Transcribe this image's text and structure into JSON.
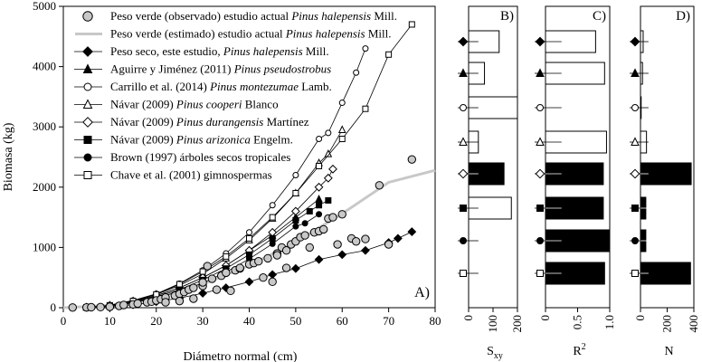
{
  "chart_data": [
    {
      "panel": "A)",
      "type": "scatter",
      "xlabel": "Diámetro normal (cm)",
      "ylabel": "Biomasa (kg)",
      "xlim": [
        0,
        80
      ],
      "ylim": [
        0,
        5000
      ],
      "xticks": [
        0,
        10,
        20,
        30,
        40,
        50,
        60,
        70,
        80
      ],
      "yticks": [
        0,
        1000,
        2000,
        3000,
        4000,
        5000
      ],
      "legend_position": "top-left",
      "series": [
        {
          "key": "obs",
          "label_pre": "Peso verde (observado) estudio actual ",
          "label_species": "Pinus halepensis",
          "label_post": " Mill.",
          "style": "circle-gray",
          "x": [
            2,
            5,
            6,
            8,
            10,
            12,
            13,
            15,
            16,
            18,
            19,
            20,
            21,
            22,
            22,
            24,
            25,
            25,
            26,
            27,
            28,
            28,
            30,
            30,
            31,
            32,
            33,
            34,
            35,
            36,
            37,
            38,
            38,
            40,
            41,
            42,
            43,
            44,
            45,
            46,
            46,
            47,
            48,
            48,
            49,
            50,
            51,
            52,
            53,
            54,
            55,
            56,
            57,
            58,
            59,
            60,
            62,
            63,
            65,
            68,
            70,
            75
          ],
          "values": [
            3,
            5,
            8,
            10,
            15,
            30,
            45,
            55,
            70,
            90,
            100,
            120,
            140,
            170,
            90,
            200,
            230,
            110,
            260,
            300,
            330,
            150,
            360,
            420,
            690,
            480,
            300,
            530,
            580,
            280,
            620,
            650,
            660,
            720,
            740,
            770,
            500,
            820,
            430,
            900,
            870,
            1000,
            950,
            660,
            1050,
            1100,
            1170,
            1200,
            1000,
            1250,
            1270,
            1300,
            1480,
            1500,
            1050,
            1550,
            1150,
            1100,
            1140,
            2030,
            1050,
            2460
          ]
        },
        {
          "key": "est",
          "label_pre": "Peso verde (estimado) estudio actual ",
          "label_species": "Pinus halepensis",
          "label_post": " Mill.",
          "style": "line-gray",
          "x": [
            0,
            10,
            20,
            30,
            40,
            50,
            60,
            70,
            80
          ],
          "values": [
            0,
            40,
            170,
            390,
            700,
            1090,
            1560,
            2080,
            2280
          ]
        },
        {
          "key": "seco",
          "label_pre": "Peso seco, este estudio, ",
          "label_species": "Pinus halepensis",
          "label_post": " Mill.",
          "style": "diamond-filled",
          "x": [
            5,
            10,
            15,
            20,
            25,
            30,
            35,
            40,
            45,
            50,
            55,
            60,
            65,
            70,
            72,
            75
          ],
          "values": [
            5,
            20,
            50,
            100,
            160,
            240,
            330,
            430,
            550,
            650,
            800,
            880,
            950,
            1080,
            1150,
            1260
          ]
        },
        {
          "key": "aguirre",
          "label_pre": "Aguirre y Jiménez (2011) ",
          "label_species": "Pinus pseudostrobus",
          "label_post": "",
          "style": "triangle-filled",
          "x": [
            5,
            10,
            15,
            20,
            25,
            30,
            35,
            40,
            45,
            50,
            55
          ],
          "values": [
            5,
            35,
            100,
            200,
            330,
            500,
            700,
            950,
            1200,
            1500,
            1800
          ]
        },
        {
          "key": "carrillo",
          "label_pre": "Carrillo et al. (2014) ",
          "label_species": "Pinus montezumae",
          "label_post": " Lamb.",
          "style": "circle-open",
          "x": [
            5,
            10,
            15,
            20,
            25,
            30,
            35,
            40,
            45,
            50,
            55,
            57,
            60,
            63,
            65
          ],
          "values": [
            6,
            40,
            120,
            230,
            400,
            620,
            900,
            1250,
            1700,
            2200,
            2800,
            2900,
            3400,
            3900,
            4300
          ]
        },
        {
          "key": "cooperi",
          "label_pre": "Návar (2009) ",
          "label_species": "Pinus cooperi",
          "label_post": " Blanco",
          "style": "triangle-open",
          "x": [
            5,
            10,
            15,
            20,
            25,
            30,
            35,
            40,
            45,
            50,
            55,
            57,
            60
          ],
          "values": [
            5,
            40,
            110,
            220,
            370,
            560,
            820,
            1120,
            1480,
            1900,
            2400,
            2550,
            2950
          ]
        },
        {
          "key": "durang",
          "label_pre": "Návar (2009) ",
          "label_species": "Pinus durangensis",
          "label_post": " Martínez",
          "style": "diamond-open",
          "x": [
            5,
            10,
            15,
            20,
            25,
            30,
            35,
            40,
            45,
            50,
            55,
            57,
            58
          ],
          "values": [
            5,
            35,
            100,
            200,
            330,
            500,
            700,
            950,
            1250,
            1600,
            2000,
            2150,
            2300
          ]
        },
        {
          "key": "arizonica",
          "label_pre": "Návar (2009) ",
          "label_species": "Pinus arizonica",
          "label_post": " Engelm.",
          "style": "square-filled",
          "x": [
            5,
            10,
            15,
            20,
            25,
            30,
            35,
            40,
            45,
            50,
            53,
            55,
            57
          ],
          "values": [
            5,
            30,
            90,
            180,
            300,
            460,
            650,
            880,
            1150,
            1450,
            1600,
            1700,
            1780
          ]
        },
        {
          "key": "brown",
          "label_pre": "Brown (1997) árboles secos tropicales",
          "label_species": "",
          "label_post": "",
          "style": "circle-filled",
          "x": [
            5,
            10,
            15,
            20,
            25,
            30,
            35,
            40,
            45,
            50,
            52,
            55
          ],
          "values": [
            5,
            25,
            80,
            160,
            270,
            410,
            590,
            810,
            1060,
            1350,
            1400,
            1550
          ]
        },
        {
          "key": "chave",
          "label_pre": "Chave et al. (2001) gimnospermas",
          "label_species": "",
          "label_post": "",
          "style": "square-open",
          "x": [
            5,
            10,
            15,
            20,
            25,
            30,
            35,
            40,
            45,
            50,
            55,
            60,
            65,
            70,
            75
          ],
          "values": [
            5,
            40,
            110,
            220,
            390,
            600,
            850,
            1150,
            1500,
            1900,
            2350,
            2800,
            3300,
            4200,
            4700
          ]
        }
      ]
    },
    {
      "panel": "B)",
      "type": "bar",
      "orientation": "horizontal",
      "xlabel": "S",
      "xlabel_sub": "xy",
      "xlim": [
        0,
        200
      ],
      "xticks": [
        0,
        100,
        200
      ],
      "categories": [
        "seco",
        "aguirre",
        "carrillo",
        "cooperi",
        "durang",
        "arizonica",
        "brown",
        "chave"
      ],
      "values": [
        125,
        65,
        200,
        40,
        145,
        175,
        0,
        0
      ],
      "fills": [
        "white",
        "white",
        "white",
        "white",
        "black",
        "white",
        "white",
        "white"
      ],
      "errors": [
        40,
        40,
        40,
        40,
        40,
        40,
        40,
        40
      ]
    },
    {
      "panel": "C)",
      "type": "bar",
      "orientation": "horizontal",
      "xlabel": "R",
      "xlabel_sup": "2",
      "xlim": [
        0,
        1
      ],
      "xticks": [
        0,
        0.5,
        1.0
      ],
      "xtick_labels": [
        "0",
        "0.5",
        "1.0"
      ],
      "categories": [
        "seco",
        "aguirre",
        "carrillo",
        "cooperi",
        "durang",
        "arizonica",
        "brown",
        "chave"
      ],
      "values": [
        0.78,
        0.92,
        0,
        0.95,
        0.9,
        0.9,
        1.0,
        0.92
      ],
      "fills": [
        "white",
        "white",
        "white",
        "white",
        "black",
        "black",
        "black",
        "black"
      ],
      "errors": [
        0.25,
        0.25,
        0.25,
        0.25,
        0.25,
        0.25,
        0.25,
        0.25
      ]
    },
    {
      "panel": "D)",
      "type": "bar",
      "orientation": "horizontal",
      "xlabel": "N",
      "xlim": [
        0,
        400
      ],
      "xticks": [
        0,
        200,
        400
      ],
      "categories": [
        "seco",
        "aguirre",
        "carrillo",
        "cooperi",
        "durang",
        "arizonica",
        "brown",
        "chave"
      ],
      "values": [
        20,
        15,
        5,
        45,
        380,
        40,
        40,
        375
      ],
      "fills": [
        "white",
        "white",
        "white",
        "white",
        "black",
        "black",
        "black",
        "black"
      ],
      "errors": [
        60,
        60,
        60,
        60,
        60,
        60,
        60,
        60
      ]
    }
  ]
}
